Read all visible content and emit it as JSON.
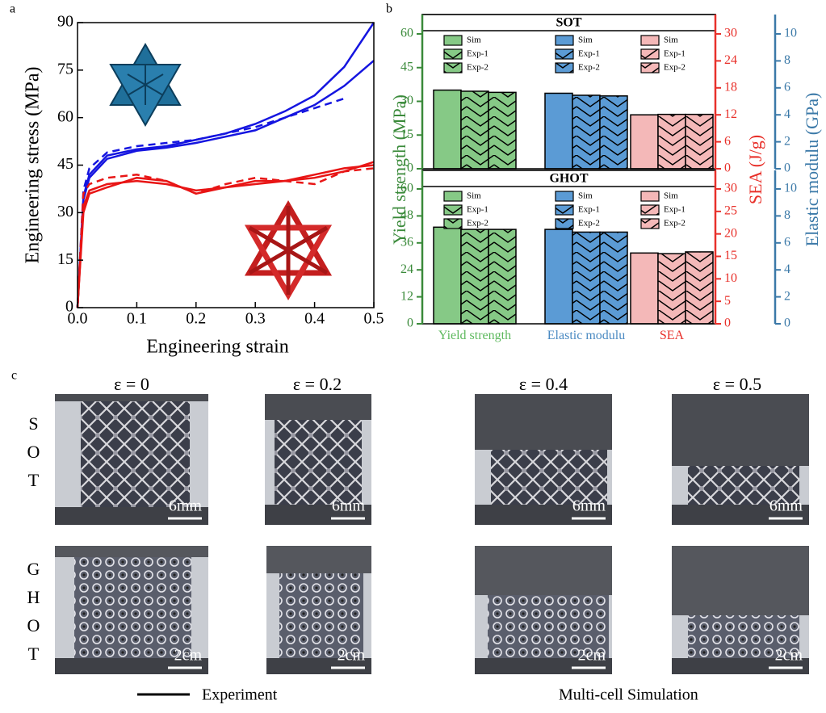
{
  "figure": {
    "panel_labels": [
      "a",
      "b",
      "c"
    ],
    "strain_labels": [
      "ε = 0",
      "ε = 0.2",
      "ε = 0.4",
      "ε = 0.5"
    ],
    "rows": [
      {
        "label": "SOT",
        "scale_bars": [
          "6mm",
          "6mm",
          "6mm",
          "6mm"
        ]
      },
      {
        "label": "GHOT",
        "scale_bars": [
          "2cm",
          "2cm",
          "2cm",
          "2cm"
        ]
      }
    ],
    "legend": [
      "Experiment",
      "Multi-cell Simulation"
    ]
  },
  "chart_data": [
    {
      "type": "line",
      "xlabel": "Engineering strain",
      "ylabel": "Engineering stress (MPa)",
      "x": [
        0,
        0.01,
        0.02,
        0.05,
        0.1,
        0.15,
        0.2,
        0.25,
        0.3,
        0.35,
        0.4,
        0.45,
        0.5
      ],
      "xlim": [
        0,
        0.5
      ],
      "xticks": [
        {
          "value": 0,
          "label": "0.0"
        },
        0.1,
        0.2,
        0.3,
        0.4,
        0.5
      ],
      "ylim": [
        0,
        90
      ],
      "yticks": [
        0,
        15,
        30,
        45,
        60,
        75,
        90
      ],
      "series": [
        {
          "color": "#1515e0",
          "style": "solid",
          "values": [
            0,
            35,
            42,
            48,
            50,
            51,
            53,
            55,
            58,
            62,
            67,
            76,
            90
          ]
        },
        {
          "color": "#1515e0",
          "style": "solid",
          "values": [
            0,
            34,
            41,
            47,
            49.5,
            50.5,
            52,
            54,
            56,
            60,
            64,
            70,
            78
          ]
        },
        {
          "color": "#1515e0",
          "style": "dashed",
          "values": [
            0,
            37,
            44,
            49,
            51,
            52,
            53,
            55,
            57,
            60,
            63,
            66,
            null
          ]
        },
        {
          "color": "#e81515",
          "style": "solid",
          "values": [
            0,
            32,
            37,
            39,
            40,
            39,
            37,
            38,
            39,
            40,
            41,
            43,
            46
          ]
        },
        {
          "color": "#e81515",
          "style": "solid",
          "values": [
            0,
            30,
            36,
            38,
            41,
            40,
            36,
            38,
            40,
            40,
            42,
            44,
            45
          ]
        },
        {
          "color": "#e81515",
          "style": "dashed",
          "values": [
            0,
            36,
            39,
            41,
            42,
            40,
            36,
            39,
            41,
            40,
            39,
            43,
            44
          ]
        }
      ]
    },
    {
      "type": "bar",
      "title": "SOT",
      "series": [
        {
          "name": "Sim",
          "hatch": "none",
          "values": [
            35,
            5.6,
            12
          ]
        },
        {
          "name": "Exp-1",
          "hatch": "chevron",
          "values": [
            34.5,
            5.45,
            12.1
          ]
        },
        {
          "name": "Exp-2",
          "hatch": "chevron",
          "values": [
            34,
            5.4,
            12.1
          ]
        }
      ],
      "category_axes": [
        "y",
        "y3",
        "y2"
      ],
      "bar_colors": [
        "#86c986",
        "#5b9bd5",
        "#f4b8b8"
      ],
      "axis_colors": {
        "y": "#3a8a3a",
        "y2": "#e8302a",
        "y3": "#3b79a8"
      },
      "ylim": [
        0,
        60
      ],
      "yticks": [
        0,
        15,
        30,
        45,
        60
      ],
      "y2lim": [
        0,
        30
      ],
      "y2ticks": [
        0,
        6,
        12,
        18,
        24,
        30
      ],
      "y3lim": [
        0,
        10
      ],
      "y3ticks": [
        0,
        2,
        4,
        6,
        8,
        10
      ]
    },
    {
      "type": "bar",
      "title": "GHOT",
      "categories": [
        "Yield strength",
        "Elastic modulu",
        "SEA"
      ],
      "category_colors": [
        "#5cb85c",
        "#4a8ac2",
        "#e8302a"
      ],
      "ylabel": "Yield strength (MPa)",
      "y2label": "SEA (J/g)",
      "y3label": "Elastic modulu (GPa)",
      "series": [
        {
          "name": "Sim",
          "hatch": "none",
          "values": [
            43,
            7.0,
            15.75
          ]
        },
        {
          "name": "Exp-1",
          "hatch": "chevron",
          "values": [
            42,
            6.8,
            15.6
          ]
        },
        {
          "name": "Exp-2",
          "hatch": "chevron",
          "values": [
            42,
            6.8,
            16
          ]
        }
      ],
      "category_axes": [
        "y",
        "y3",
        "y2"
      ],
      "bar_colors": [
        "#86c986",
        "#5b9bd5",
        "#f4b8b8"
      ],
      "axis_colors": {
        "y": "#3a8a3a",
        "y2": "#e8302a",
        "y3": "#3b79a8"
      },
      "ylim": [
        0,
        60
      ],
      "yticks": [
        0,
        12,
        24,
        36,
        48,
        60
      ],
      "y2lim": [
        0,
        30
      ],
      "y2ticks": [
        0,
        5,
        10,
        15,
        20,
        25,
        30
      ],
      "y3lim": [
        0,
        10
      ],
      "y3ticks": [
        0,
        2,
        4,
        6,
        8,
        10
      ]
    }
  ]
}
